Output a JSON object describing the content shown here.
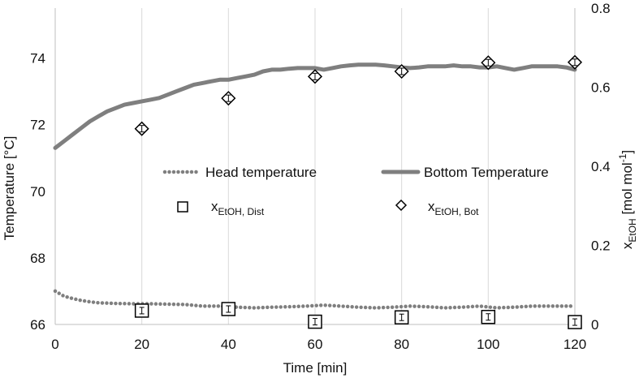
{
  "chart_data": {
    "type": "line",
    "xlabel": "Time [min]",
    "ylabel_left": "Temperature [°C]",
    "ylabel_right": {
      "var": "x",
      "sub": "EtOH",
      "text": " [mol mol",
      "sup": "-1",
      "close": "]"
    },
    "xlim": [
      0,
      120
    ],
    "xticks": [
      "0",
      "20",
      "40",
      "60",
      "80",
      "100",
      "120"
    ],
    "ylim_left": [
      66,
      75.5
    ],
    "yticks_left": [
      "66",
      "68",
      "70",
      "72",
      "74"
    ],
    "ylim_right": [
      0,
      0.8
    ],
    "yticks_right": [
      "0",
      "0.2",
      "0.4",
      "0.6",
      "0.8"
    ],
    "grid": "vertical",
    "colors": {
      "series": "#7f7f7f",
      "grid": "#d9d9d9",
      "marker": "#000000"
    },
    "series": [
      {
        "name": "Head temperature",
        "axis": "left",
        "style": "dotted",
        "x": [
          0,
          2,
          4,
          6,
          8,
          10,
          14,
          18,
          22,
          26,
          30,
          34,
          38,
          42,
          46,
          50,
          54,
          58,
          62,
          66,
          70,
          74,
          78,
          82,
          86,
          90,
          94,
          98,
          102,
          106,
          110,
          114,
          118,
          120
        ],
        "y": [
          67.0,
          66.85,
          66.78,
          66.72,
          66.68,
          66.65,
          66.63,
          66.62,
          66.62,
          66.61,
          66.6,
          66.55,
          66.55,
          66.52,
          66.5,
          66.52,
          66.53,
          66.55,
          66.58,
          66.55,
          66.52,
          66.5,
          66.52,
          66.55,
          66.53,
          66.5,
          66.52,
          66.55,
          66.5,
          66.52,
          66.55,
          66.55,
          66.55,
          66.55
        ]
      },
      {
        "name": "Bottom Temperature",
        "axis": "left",
        "style": "solid",
        "x": [
          0,
          2,
          4,
          6,
          8,
          10,
          12,
          14,
          16,
          18,
          20,
          22,
          24,
          26,
          28,
          30,
          32,
          34,
          36,
          38,
          40,
          42,
          44,
          46,
          48,
          50,
          52,
          54,
          56,
          58,
          60,
          62,
          64,
          66,
          68,
          70,
          72,
          74,
          76,
          78,
          80,
          82,
          84,
          86,
          88,
          90,
          92,
          94,
          96,
          98,
          100,
          102,
          104,
          106,
          108,
          110,
          112,
          114,
          116,
          118,
          120
        ],
        "y": [
          71.3,
          71.5,
          71.7,
          71.9,
          72.1,
          72.25,
          72.4,
          72.5,
          72.6,
          72.65,
          72.7,
          72.75,
          72.8,
          72.9,
          73.0,
          73.1,
          73.2,
          73.25,
          73.3,
          73.35,
          73.35,
          73.4,
          73.45,
          73.5,
          73.6,
          73.65,
          73.65,
          73.68,
          73.7,
          73.7,
          73.7,
          73.65,
          73.7,
          73.75,
          73.78,
          73.8,
          73.8,
          73.8,
          73.78,
          73.75,
          73.72,
          73.7,
          73.72,
          73.75,
          73.75,
          73.75,
          73.78,
          73.75,
          73.75,
          73.72,
          73.72,
          73.75,
          73.7,
          73.65,
          73.7,
          73.75,
          73.75,
          73.75,
          73.75,
          73.72,
          73.65
        ]
      },
      {
        "name": "xEtOH, Dist",
        "label": {
          "var": "x",
          "sub": "EtOH, Dist"
        },
        "axis": "right",
        "marker": "square",
        "x": [
          20,
          40,
          60,
          80,
          100,
          120
        ],
        "y": [
          0.035,
          0.039,
          0.007,
          0.018,
          0.019,
          0.006
        ]
      },
      {
        "name": "xEtOH, Bot",
        "label": {
          "var": "x",
          "sub": "EtOH, Bot"
        },
        "axis": "right",
        "marker": "diamond",
        "x": [
          20,
          40,
          60,
          80,
          100,
          120
        ],
        "y": [
          0.495,
          0.572,
          0.627,
          0.64,
          0.662,
          0.663
        ]
      }
    ]
  }
}
